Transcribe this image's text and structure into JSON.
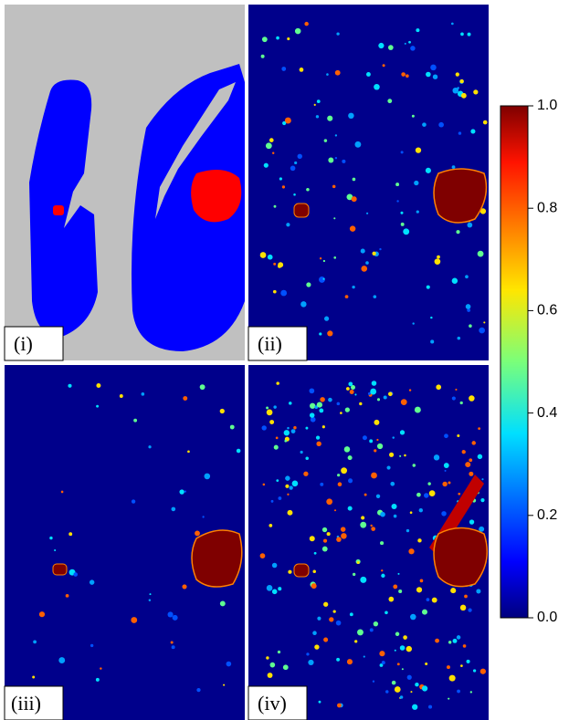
{
  "panels": [
    {
      "label": "(i)"
    },
    {
      "label": "(ii)"
    },
    {
      "label": "(iii)"
    },
    {
      "label": "(iv)"
    }
  ],
  "colorbar": {
    "range": [
      0,
      1
    ],
    "ticks": [
      {
        "value": 0,
        "label": "0.0"
      },
      {
        "value": 0.2,
        "label": "0.2"
      },
      {
        "value": 0.4,
        "label": "0.4"
      },
      {
        "value": 0.6,
        "label": "0.6"
      },
      {
        "value": 0.8,
        "label": "0.8"
      },
      {
        "value": 1,
        "label": "1.0"
      }
    ]
  }
}
